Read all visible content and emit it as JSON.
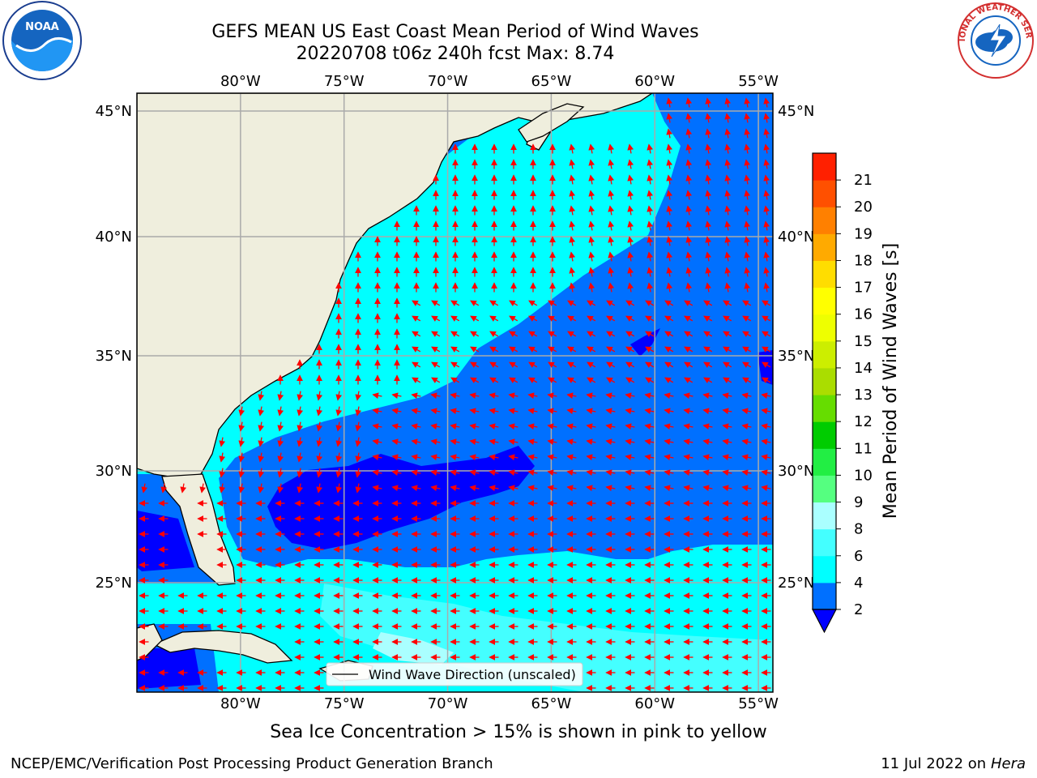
{
  "title": {
    "line1": "GEFS MEAN US East Coast Mean Period of Wind Waves",
    "line2": "20220708 t06z 240h fcst   Max: 8.74"
  },
  "logos": {
    "noaa_text": "NOAA",
    "nws_text": "NATIONAL WEATHER SERVICE"
  },
  "map": {
    "longitude_labels": [
      "80°W",
      "75°W",
      "70°W",
      "65°W",
      "60°W",
      "55°W"
    ],
    "latitude_labels": [
      "45°N",
      "40°N",
      "35°N",
      "30°N",
      "25°N"
    ],
    "longitude_values": [
      -80,
      -75,
      -70,
      -65,
      -60,
      -55
    ],
    "latitude_values": [
      45,
      40,
      35,
      30,
      25
    ],
    "extent": {
      "lon_min": -85,
      "lon_max": -54.3,
      "lat_min": 20,
      "lat_max": 46
    },
    "legend_label": "Wind Wave Direction (unscaled)",
    "land_color": "#efeedd",
    "arrow_color": "#ff0000",
    "wave_field_pattern": {
      "coastal_band_period_s": "4-6",
      "central_atlantic_period_s": "2-4",
      "gulf_stream_core_period_s": "<2",
      "southern_trade_wind_period_s": "6-8"
    }
  },
  "colorbar": {
    "label": "Mean Period of Wind Waves [s]",
    "ticks": [
      "2",
      "4",
      "6",
      "8",
      "9",
      "10",
      "11",
      "12",
      "13",
      "14",
      "15",
      "16",
      "17",
      "18",
      "19",
      "20",
      "21"
    ],
    "under_color": "#0000ff",
    "colors": [
      "#0070ff",
      "#00ffff",
      "#44ffff",
      "#aaffff",
      "#55ff80",
      "#22ee44",
      "#00cc00",
      "#66dd00",
      "#aadd00",
      "#ccee00",
      "#eeff00",
      "#ffff00",
      "#ffdd00",
      "#ffaa00",
      "#ff8000",
      "#ff5000",
      "#ff2000"
    ]
  },
  "caption": "Sea Ice Concentration > 15% is shown in pink to yellow",
  "footer": {
    "left": "NCEP/EMC/Verification Post Processing Product Generation Branch",
    "right_date": "11 Jul 2022 on ",
    "right_system": "Hera"
  }
}
